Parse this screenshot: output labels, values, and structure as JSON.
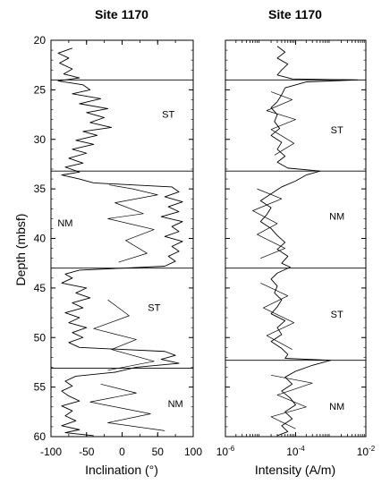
{
  "chart_data": [
    {
      "type": "line",
      "title": "Site 1170",
      "xlabel": "Inclination (°)",
      "ylabel": "Depth (mbsf)",
      "xlim": [
        -100,
        100
      ],
      "ylim": [
        60,
        20
      ],
      "x_scale": "linear",
      "x_ticks": [
        "-100",
        "-50",
        "0",
        "50",
        "100"
      ],
      "y_ticks": [
        "20",
        "25",
        "30",
        "35",
        "40",
        "45",
        "50",
        "55",
        "60"
      ],
      "annotations": [
        {
          "text": "ST",
          "x": 65,
          "y": 27.8
        },
        {
          "text": "NM",
          "x": -80,
          "y": 38.8
        },
        {
          "text": "ST",
          "x": 45,
          "y": 47.3
        },
        {
          "text": "NM",
          "x": 75,
          "y": 57.0
        }
      ],
      "reference_lines_depth": [
        24.0,
        33.2,
        43.0,
        53.1
      ],
      "series": [
        {
          "points": [
            [
              -70,
              20.8
            ],
            [
              -90,
              21.3
            ],
            [
              -75,
              21.8
            ],
            [
              -88,
              22.3
            ],
            [
              -70,
              22.9
            ],
            [
              -82,
              23.4
            ],
            [
              -60,
              23.8
            ],
            [
              -90,
              24.1
            ],
            [
              -55,
              24.5
            ],
            [
              -45,
              25.0
            ],
            [
              -70,
              25.4
            ],
            [
              -30,
              25.9
            ],
            [
              -60,
              26.4
            ],
            [
              -20,
              26.9
            ],
            [
              -50,
              27.3
            ],
            [
              -25,
              27.8
            ],
            [
              -45,
              28.3
            ],
            [
              -15,
              28.8
            ],
            [
              -55,
              29.2
            ],
            [
              -35,
              29.6
            ],
            [
              -65,
              30.1
            ],
            [
              -40,
              30.5
            ],
            [
              -70,
              31.0
            ],
            [
              -50,
              31.4
            ],
            [
              -75,
              31.9
            ],
            [
              -55,
              32.4
            ],
            [
              -80,
              32.8
            ],
            [
              -60,
              33.3
            ],
            [
              -85,
              33.6
            ],
            [
              -60,
              34.0
            ],
            [
              -40,
              34.4
            ],
            [
              70,
              34.8
            ],
            [
              80,
              35.3
            ],
            [
              60,
              35.8
            ],
            [
              85,
              36.3
            ],
            [
              65,
              36.8
            ],
            [
              80,
              37.3
            ],
            [
              55,
              37.8
            ],
            [
              85,
              38.3
            ],
            [
              70,
              38.8
            ],
            [
              80,
              39.3
            ],
            [
              60,
              39.8
            ],
            [
              85,
              40.3
            ],
            [
              70,
              40.8
            ],
            [
              80,
              41.3
            ],
            [
              65,
              41.8
            ],
            [
              75,
              42.3
            ],
            [
              60,
              42.8
            ],
            [
              -60,
              43.2
            ],
            [
              -80,
              43.6
            ],
            [
              -70,
              44.0
            ],
            [
              -85,
              44.5
            ],
            [
              -50,
              45.0
            ],
            [
              -65,
              45.5
            ],
            [
              -45,
              46.0
            ],
            [
              -70,
              46.5
            ],
            [
              -55,
              47.0
            ],
            [
              -80,
              47.5
            ],
            [
              -60,
              48.0
            ],
            [
              -75,
              48.5
            ],
            [
              -50,
              49.0
            ],
            [
              -70,
              49.5
            ],
            [
              -55,
              50.0
            ],
            [
              -75,
              50.5
            ],
            [
              -60,
              51.0
            ],
            [
              60,
              51.4
            ],
            [
              75,
              51.8
            ],
            [
              55,
              52.2
            ],
            [
              80,
              52.6
            ],
            [
              20,
              53.0
            ],
            [
              -10,
              53.5
            ],
            [
              -65,
              53.9
            ],
            [
              -80,
              54.4
            ],
            [
              -70,
              54.9
            ],
            [
              -85,
              55.4
            ],
            [
              -75,
              55.9
            ],
            [
              -60,
              56.4
            ],
            [
              -85,
              56.9
            ],
            [
              -70,
              57.4
            ],
            [
              -80,
              57.9
            ],
            [
              -65,
              58.4
            ],
            [
              -85,
              58.9
            ],
            [
              -60,
              59.3
            ],
            [
              -80,
              59.6
            ],
            [
              -40,
              59.9
            ]
          ]
        },
        {
          "points": [
            [
              -18,
              34.6
            ],
            [
              15,
              35.0
            ],
            [
              50,
              35.6
            ],
            [
              -10,
              36.4
            ],
            [
              30,
              37.5
            ],
            [
              -20,
              38.0
            ],
            [
              45,
              39.1
            ],
            [
              5,
              40.2
            ],
            [
              35,
              41.5
            ],
            [
              -5,
              42.4
            ]
          ]
        },
        {
          "points": [
            [
              -20,
              46.2
            ],
            [
              10,
              47.8
            ],
            [
              -40,
              49.1
            ],
            [
              20,
              50.2
            ],
            [
              -15,
              51.2
            ],
            [
              45,
              52.4
            ],
            [
              -20,
              53.3
            ]
          ]
        },
        {
          "points": [
            [
              -30,
              54.7
            ],
            [
              20,
              55.6
            ],
            [
              -45,
              56.5
            ],
            [
              40,
              57.7
            ],
            [
              -20,
              58.6
            ],
            [
              60,
              59.4
            ]
          ]
        }
      ]
    },
    {
      "type": "line",
      "title": "Site 1170",
      "xlabel": "Intensity (A/m)",
      "ylabel": "",
      "xlim": [
        1e-06,
        0.01
      ],
      "ylim": [
        60,
        20
      ],
      "x_scale": "log",
      "x_ticks": [
        "10-6",
        "10-4",
        "10-2"
      ],
      "y_ticks": [
        "20",
        "25",
        "30",
        "35",
        "40",
        "45",
        "50",
        "55",
        "60"
      ],
      "annotations": [
        {
          "text": "ST",
          "x": 0.0015,
          "y": 29.4
        },
        {
          "text": "NM",
          "x": 0.0015,
          "y": 38.1
        },
        {
          "text": "ST",
          "x": 0.0015,
          "y": 48.0
        },
        {
          "text": "NM",
          "x": 0.0015,
          "y": 57.3
        }
      ],
      "reference_lines_depth": [
        24.0,
        33.2,
        43.0,
        52.3
      ],
      "series": [
        {
          "points": [
            [
              3e-05,
              20.6
            ],
            [
              5e-05,
              21.2
            ],
            [
              3e-05,
              21.8
            ],
            [
              6e-05,
              22.4
            ],
            [
              4e-05,
              23.0
            ],
            [
              3e-05,
              23.5
            ],
            [
              8e-05,
              23.9
            ],
            [
              0.006,
              24.0
            ],
            [
              0.0002,
              24.2
            ],
            [
              5e-05,
              24.8
            ],
            [
              4e-05,
              25.5
            ],
            [
              3e-05,
              26.2
            ],
            [
              2e-05,
              26.8
            ],
            [
              3e-05,
              27.5
            ],
            [
              2.5e-05,
              28.2
            ],
            [
              3.5e-05,
              28.9
            ],
            [
              2e-05,
              29.6
            ],
            [
              4e-05,
              30.3
            ],
            [
              3e-05,
              31.0
            ],
            [
              5e-05,
              31.7
            ],
            [
              3e-05,
              32.3
            ],
            [
              6e-05,
              32.9
            ],
            [
              0.0005,
              33.2
            ],
            [
              0.0002,
              33.6
            ],
            [
              0.0001,
              34.2
            ],
            [
              4e-05,
              34.8
            ],
            [
              2e-05,
              35.5
            ],
            [
              1e-05,
              36.2
            ],
            [
              2e-05,
              36.9
            ],
            [
              1.5e-05,
              37.6
            ],
            [
              1e-05,
              38.3
            ],
            [
              2e-05,
              39.0
            ],
            [
              3e-05,
              39.7
            ],
            [
              5e-05,
              40.4
            ],
            [
              3e-05,
              41.1
            ],
            [
              6e-05,
              41.8
            ],
            [
              4e-05,
              42.5
            ],
            [
              7e-05,
              42.9
            ],
            [
              3e-05,
              43.5
            ],
            [
              2e-05,
              44.1
            ],
            [
              3e-05,
              44.8
            ],
            [
              2.5e-05,
              45.5
            ],
            [
              4e-05,
              46.2
            ],
            [
              3e-05,
              46.9
            ],
            [
              2e-05,
              47.6
            ],
            [
              5e-05,
              48.3
            ],
            [
              3e-05,
              49.0
            ],
            [
              4e-05,
              49.7
            ],
            [
              2e-05,
              50.4
            ],
            [
              4e-05,
              51.1
            ],
            [
              6e-05,
              51.7
            ],
            [
              5e-05,
              52.1
            ],
            [
              0.001,
              52.3
            ],
            [
              0.0003,
              52.8
            ],
            [
              0.0001,
              53.4
            ],
            [
              5e-05,
              54.0
            ],
            [
              8e-05,
              54.7
            ],
            [
              4e-05,
              55.4
            ],
            [
              7e-05,
              56.1
            ],
            [
              0.0001,
              56.8
            ],
            [
              5e-05,
              57.5
            ],
            [
              8e-05,
              58.2
            ],
            [
              4e-05,
              58.9
            ],
            [
              6e-05,
              59.5
            ],
            [
              3e-05,
              59.9
            ]
          ]
        },
        {
          "points": [
            [
              2e-05,
              25.2
            ],
            [
              8e-05,
              26.0
            ],
            [
              1.5e-05,
              27.1
            ],
            [
              0.0001,
              28.0
            ],
            [
              2e-05,
              29.0
            ],
            [
              9e-05,
              30.4
            ],
            [
              2.5e-05,
              31.6
            ]
          ]
        },
        {
          "points": [
            [
              8e-06,
              35.0
            ],
            [
              4e-05,
              36.0
            ],
            [
              6e-06,
              37.2
            ],
            [
              3e-05,
              38.5
            ],
            [
              8e-06,
              39.6
            ],
            [
              5e-05,
              41.0
            ],
            [
              1e-05,
              42.0
            ]
          ]
        },
        {
          "points": [
            [
              1e-05,
              44.5
            ],
            [
              6e-05,
              45.8
            ],
            [
              1.2e-05,
              47.0
            ],
            [
              9e-05,
              48.5
            ],
            [
              1.5e-05,
              49.8
            ],
            [
              8e-05,
              51.2
            ]
          ]
        },
        {
          "points": [
            [
              2e-05,
              53.8
            ],
            [
              0.0003,
              54.6
            ],
            [
              3e-05,
              55.8
            ],
            [
              0.0002,
              57.0
            ],
            [
              2e-05,
              58.0
            ],
            [
              0.0001,
              59.2
            ]
          ]
        }
      ]
    }
  ]
}
